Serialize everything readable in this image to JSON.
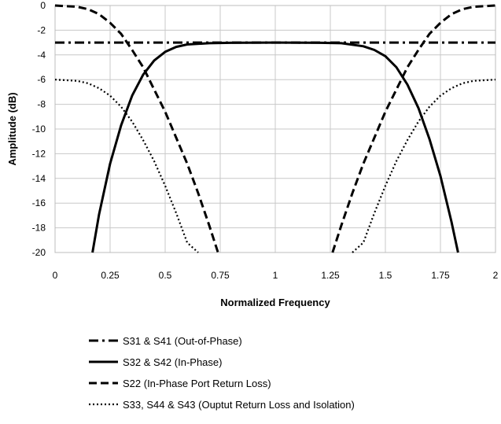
{
  "chart_data": {
    "type": "line",
    "xlabel": "Normalized Frequency",
    "ylabel": "Amplitude (dB)",
    "xlim": [
      0,
      2
    ],
    "ylim": [
      -20,
      0
    ],
    "x_ticks": [
      0,
      0.25,
      0.5,
      0.75,
      1,
      1.25,
      1.5,
      1.75,
      2
    ],
    "y_ticks": [
      0,
      -2,
      -4,
      -6,
      -8,
      -10,
      -12,
      -14,
      -16,
      -18,
      -20
    ],
    "grid": true,
    "legend_position": "bottom",
    "series": [
      {
        "name": "S31 & S41 (Out-of-Phase)",
        "line_style": "dash-dot",
        "x": [
          0,
          0.25,
          0.5,
          0.75,
          1,
          1.25,
          1.5,
          1.75,
          2
        ],
        "y": [
          -3,
          -3,
          -3,
          -3,
          -3,
          -3,
          -3,
          -3,
          -3
        ]
      },
      {
        "name": "S32 & S42 (In-Phase)",
        "line_style": "solid",
        "x": [
          0.17,
          0.2,
          0.25,
          0.3,
          0.35,
          0.4,
          0.45,
          0.5,
          0.55,
          0.6,
          0.7,
          0.8,
          0.9,
          1.0,
          1.1,
          1.2,
          1.3,
          1.4,
          1.45,
          1.5,
          1.55,
          1.6,
          1.65,
          1.7,
          1.75,
          1.8,
          1.83
        ],
        "y": [
          -20,
          -16.9,
          -12.8,
          -9.7,
          -7.3,
          -5.6,
          -4.45,
          -3.75,
          -3.35,
          -3.15,
          -3.05,
          -3.02,
          -3.01,
          -3.0,
          -3.01,
          -3.02,
          -3.05,
          -3.3,
          -3.6,
          -4.1,
          -5.0,
          -6.4,
          -8.3,
          -10.8,
          -13.8,
          -17.5,
          -20
        ]
      },
      {
        "name": "S22 (In-Phase Port Return Loss)",
        "line_style": "dashed",
        "x": [
          0,
          0.1,
          0.15,
          0.2,
          0.25,
          0.3,
          0.35,
          0.4,
          0.45,
          0.5,
          0.55,
          0.6,
          0.65,
          0.7,
          0.74,
          1.26,
          1.3,
          1.35,
          1.4,
          1.45,
          1.5,
          1.55,
          1.6,
          1.65,
          1.7,
          1.75,
          1.8,
          1.85,
          1.9,
          2
        ],
        "y": [
          0,
          -0.1,
          -0.3,
          -0.7,
          -1.4,
          -2.3,
          -3.6,
          -5.0,
          -6.8,
          -8.6,
          -10.7,
          -12.8,
          -15.2,
          -17.8,
          -20,
          -20,
          -17.8,
          -15.2,
          -12.8,
          -10.7,
          -8.6,
          -6.8,
          -5.0,
          -3.6,
          -2.3,
          -1.4,
          -0.7,
          -0.3,
          -0.1,
          0
        ]
      },
      {
        "name": "S33, S44 & S43 (Ouptut Return Loss and Isolation)",
        "line_style": "dotted",
        "x": [
          0,
          0.1,
          0.15,
          0.2,
          0.25,
          0.3,
          0.35,
          0.4,
          0.45,
          0.5,
          0.55,
          0.6,
          0.65,
          1.35,
          1.4,
          1.45,
          1.5,
          1.55,
          1.6,
          1.65,
          1.7,
          1.75,
          1.8,
          1.85,
          1.9,
          2
        ],
        "y": [
          -6,
          -6.1,
          -6.3,
          -6.7,
          -7.3,
          -8.2,
          -9.4,
          -10.9,
          -12.6,
          -14.6,
          -16.8,
          -19.2,
          -20,
          -20,
          -19.2,
          -16.8,
          -14.6,
          -12.6,
          -10.9,
          -9.4,
          -8.2,
          -7.3,
          -6.7,
          -6.3,
          -6.1,
          -6
        ]
      }
    ]
  }
}
